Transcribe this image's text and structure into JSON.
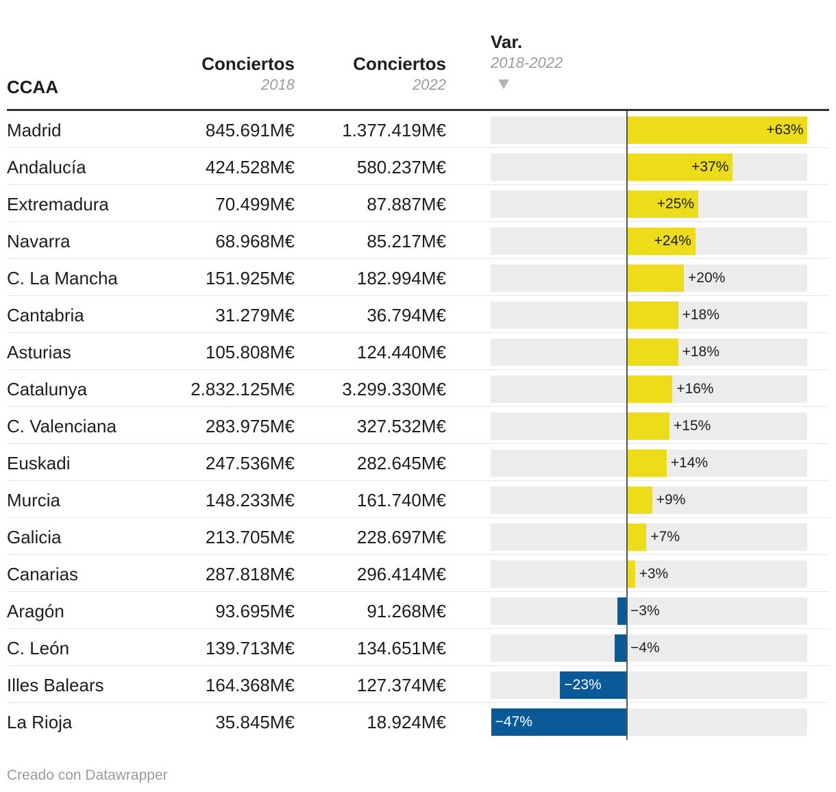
{
  "header": {
    "col_region": "CCAA",
    "col_2018_title": "Conciertos",
    "col_2018_sub": "2018",
    "col_2022_title": "Conciertos",
    "col_2022_sub": "2022",
    "col_var_title": "Var.",
    "col_var_sub": "2018-2022"
  },
  "colors": {
    "positive": "#ecdc1a",
    "negative": "#0a5a97",
    "bar_background": "#ececec"
  },
  "footer": "Creado con Datawrapper",
  "chart_data": {
    "type": "table",
    "columns": [
      "CCAA",
      "Conciertos 2018",
      "Conciertos 2022",
      "Var. 2018-2022"
    ],
    "sort": "Var. 2018-2022 descending",
    "var_axis_range": [
      -47,
      63
    ],
    "rows": [
      {
        "name": "Madrid",
        "v2018": "845.691M€",
        "v2022": "1.377.419M€",
        "var": 63,
        "var_label": "+63%"
      },
      {
        "name": "Andalucía",
        "v2018": "424.528M€",
        "v2022": "580.237M€",
        "var": 37,
        "var_label": "+37%"
      },
      {
        "name": "Extremadura",
        "v2018": "70.499M€",
        "v2022": "87.887M€",
        "var": 25,
        "var_label": "+25%"
      },
      {
        "name": "Navarra",
        "v2018": "68.968M€",
        "v2022": "85.217M€",
        "var": 24,
        "var_label": "+24%"
      },
      {
        "name": "C. La Mancha",
        "v2018": "151.925M€",
        "v2022": "182.994M€",
        "var": 20,
        "var_label": "+20%"
      },
      {
        "name": "Cantabria",
        "v2018": "31.279M€",
        "v2022": "36.794M€",
        "var": 18,
        "var_label": "+18%"
      },
      {
        "name": "Asturias",
        "v2018": "105.808M€",
        "v2022": "124.440M€",
        "var": 18,
        "var_label": "+18%"
      },
      {
        "name": "Catalunya",
        "v2018": "2.832.125M€",
        "v2022": "3.299.330M€",
        "var": 16,
        "var_label": "+16%"
      },
      {
        "name": "C. Valenciana",
        "v2018": "283.975M€",
        "v2022": "327.532M€",
        "var": 15,
        "var_label": "+15%"
      },
      {
        "name": "Euskadi",
        "v2018": "247.536M€",
        "v2022": "282.645M€",
        "var": 14,
        "var_label": "+14%"
      },
      {
        "name": "Murcia",
        "v2018": "148.233M€",
        "v2022": "161.740M€",
        "var": 9,
        "var_label": "+9%"
      },
      {
        "name": "Galicia",
        "v2018": "213.705M€",
        "v2022": "228.697M€",
        "var": 7,
        "var_label": "+7%"
      },
      {
        "name": "Canarias",
        "v2018": "287.818M€",
        "v2022": "296.414M€",
        "var": 3,
        "var_label": "+3%"
      },
      {
        "name": "Aragón",
        "v2018": "93.695M€",
        "v2022": "91.268M€",
        "var": -3,
        "var_label": "−3%"
      },
      {
        "name": "C. León",
        "v2018": "139.713M€",
        "v2022": "134.651M€",
        "var": -4,
        "var_label": "−4%"
      },
      {
        "name": "Illes Balears",
        "v2018": "164.368M€",
        "v2022": "127.374M€",
        "var": -23,
        "var_label": "−23%"
      },
      {
        "name": "La Rioja",
        "v2018": "35.845M€",
        "v2022": "18.924M€",
        "var": -47,
        "var_label": "−47%"
      }
    ]
  }
}
